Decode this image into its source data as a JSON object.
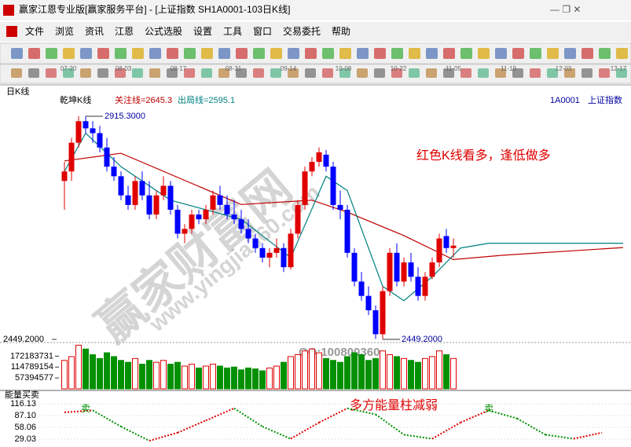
{
  "title_bar": "赢家江恩专业版[赢家服务平台] - [上证指数  SH1A0001-103日K线]",
  "menu": [
    "文件",
    "浏览",
    "资讯",
    "江恩",
    "公式选股",
    "设置",
    "工具",
    "窗口",
    "交易委托",
    "帮助"
  ],
  "dates": [
    "07-20",
    "08-03",
    "08-17",
    "08-31",
    "09-14",
    "10-08",
    "10-22",
    "11-05",
    "11-19",
    "12-03",
    "12-17"
  ],
  "chart_data": {
    "type": "candlestick",
    "period_label": "日K线",
    "indicator_name": "乾坤K线",
    "focus_line_label": "关注线=2645.3",
    "exit_line_label": "出局线=2595.1",
    "symbol": "1A0001",
    "name": "上证指数",
    "ylim": [
      2444.3,
      2936.6
    ],
    "yticks": [
      {
        "value": 2449.2,
        "label": "2449.2000"
      }
    ],
    "candles": [
      [
        2780,
        2820,
        2720,
        2800
      ],
      [
        2800,
        2870,
        2780,
        2860
      ],
      [
        2860,
        2915.3,
        2850,
        2905
      ],
      [
        2905,
        2915,
        2880,
        2890
      ],
      [
        2890,
        2905,
        2860,
        2880
      ],
      [
        2880,
        2895,
        2840,
        2850
      ],
      [
        2850,
        2870,
        2800,
        2810
      ],
      [
        2810,
        2830,
        2780,
        2790
      ],
      [
        2790,
        2800,
        2740,
        2750
      ],
      [
        2750,
        2770,
        2720,
        2730
      ],
      [
        2730,
        2790,
        2720,
        2780
      ],
      [
        2780,
        2800,
        2740,
        2750
      ],
      [
        2750,
        2780,
        2700,
        2710
      ],
      [
        2710,
        2760,
        2700,
        2750
      ],
      [
        2750,
        2790,
        2740,
        2770
      ],
      [
        2770,
        2780,
        2710,
        2720
      ],
      [
        2720,
        2730,
        2660,
        2670
      ],
      [
        2670,
        2690,
        2650,
        2680
      ],
      [
        2680,
        2720,
        2670,
        2710
      ],
      [
        2710,
        2720,
        2690,
        2700
      ],
      [
        2700,
        2730,
        2690,
        2720
      ],
      [
        2720,
        2760,
        2710,
        2750
      ],
      [
        2750,
        2770,
        2720,
        2730
      ],
      [
        2730,
        2750,
        2700,
        2710
      ],
      [
        2710,
        2740,
        2690,
        2700
      ],
      [
        2700,
        2720,
        2670,
        2680
      ],
      [
        2680,
        2700,
        2650,
        2660
      ],
      [
        2660,
        2670,
        2630,
        2640
      ],
      [
        2640,
        2650,
        2610,
        2620
      ],
      [
        2620,
        2640,
        2600,
        2630
      ],
      [
        2630,
        2660,
        2620,
        2640
      ],
      [
        2640,
        2650,
        2590,
        2600
      ],
      [
        2600,
        2680,
        2595,
        2670
      ],
      [
        2670,
        2740,
        2660,
        2730
      ],
      [
        2730,
        2810,
        2720,
        2800
      ],
      [
        2800,
        2830,
        2790,
        2820
      ],
      [
        2820,
        2850,
        2810,
        2840
      ],
      [
        2835,
        2845,
        2800,
        2810
      ],
      [
        2810,
        2820,
        2720,
        2730
      ],
      [
        2730,
        2760,
        2700,
        2720
      ],
      [
        2720,
        2730,
        2620,
        2630
      ],
      [
        2630,
        2640,
        2560,
        2570
      ],
      [
        2570,
        2590,
        2530,
        2540
      ],
      [
        2540,
        2560,
        2500,
        2510
      ],
      [
        2510,
        2520,
        2450,
        2460
      ],
      [
        2460,
        2560,
        2449.2,
        2550
      ],
      [
        2550,
        2640,
        2540,
        2630
      ],
      [
        2630,
        2650,
        2560,
        2570
      ],
      [
        2570,
        2620,
        2560,
        2610
      ],
      [
        2610,
        2630,
        2570,
        2580
      ],
      [
        2580,
        2600,
        2530,
        2540
      ],
      [
        2540,
        2590,
        2530,
        2580
      ],
      [
        2580,
        2620,
        2575,
        2610
      ],
      [
        2610,
        2670,
        2600,
        2660
      ],
      [
        2665,
        2680,
        2630,
        2640
      ],
      [
        2640,
        2660,
        2620,
        2645
      ]
    ],
    "lines": [
      {
        "color": "#c00000",
        "x": [
          0,
          8,
          25,
          35,
          40,
          48,
          55,
          62,
          79
        ],
        "values": [
          2822,
          2838,
          2731,
          2740,
          2715,
          2666,
          2616,
          2625,
          2641
        ]
      },
      {
        "color": "#008080",
        "x": [
          0,
          3,
          8,
          15,
          25,
          32,
          37,
          40,
          45,
          48,
          52,
          56,
          60,
          79
        ],
        "values": [
          2800,
          2880,
          2810,
          2740,
          2700,
          2620,
          2790,
          2760,
          2560,
          2530,
          2580,
          2640,
          2650,
          2650
        ]
      }
    ],
    "annotations": [
      {
        "label": "2915.3000",
        "value": 2915.3,
        "x": 3
      },
      {
        "label": "2449.2000",
        "value": 2449.2,
        "x": 45
      }
    ],
    "volumes": [
      150000000,
      170000000,
      230000000,
      210000000,
      180000000,
      160000000,
      190000000,
      170000000,
      150000000,
      140000000,
      160000000,
      130000000,
      150000000,
      140000000,
      150000000,
      130000000,
      140000000,
      120000000,
      130000000,
      110000000,
      120000000,
      130000000,
      120000000,
      110000000,
      115000000,
      100000000,
      110000000,
      105000000,
      95000000,
      110000000,
      120000000,
      140000000,
      170000000,
      180000000,
      200000000,
      210000000,
      190000000,
      160000000,
      150000000,
      140000000,
      170000000,
      190000000,
      180000000,
      150000000,
      160000000,
      200000000,
      180000000,
      170000000,
      160000000,
      150000000,
      140000000,
      160000000,
      170000000,
      200000000,
      180000000,
      160000000
    ],
    "vlim": [
      0,
      240000000
    ],
    "vticks": [
      172183731,
      114789154,
      57394577
    ],
    "watermark": "赢家财富网",
    "watermark_url": "www.yingjia360.com",
    "qq": "QQ:100800360",
    "note_top": "红色K线看多，逢低做多",
    "note_bottom": "多方能量柱减弱",
    "indicator": {
      "name": "能量买卖",
      "ylim": [
        17.42,
        133.55
      ],
      "yticks": [
        116.13,
        {
          "value": 87.1,
          "label": "87.10"
        },
        {
          "value": 58.06,
          "label": "58.06"
        },
        {
          "value": 29.03,
          "label": "29.03"
        }
      ],
      "x": [
        0,
        4,
        8,
        12,
        16,
        20,
        24,
        28,
        32,
        36,
        40,
        44,
        48,
        52,
        56,
        60,
        64,
        68,
        72,
        76
      ],
      "values": [
        95,
        100,
        60,
        25,
        45,
        75,
        105,
        60,
        30,
        70,
        105,
        90,
        40,
        30,
        70,
        100,
        80,
        40,
        30,
        45
      ],
      "signals": [
        {
          "label": "卖",
          "x": 3
        },
        {
          "label": "卖",
          "x": 60
        }
      ]
    }
  }
}
